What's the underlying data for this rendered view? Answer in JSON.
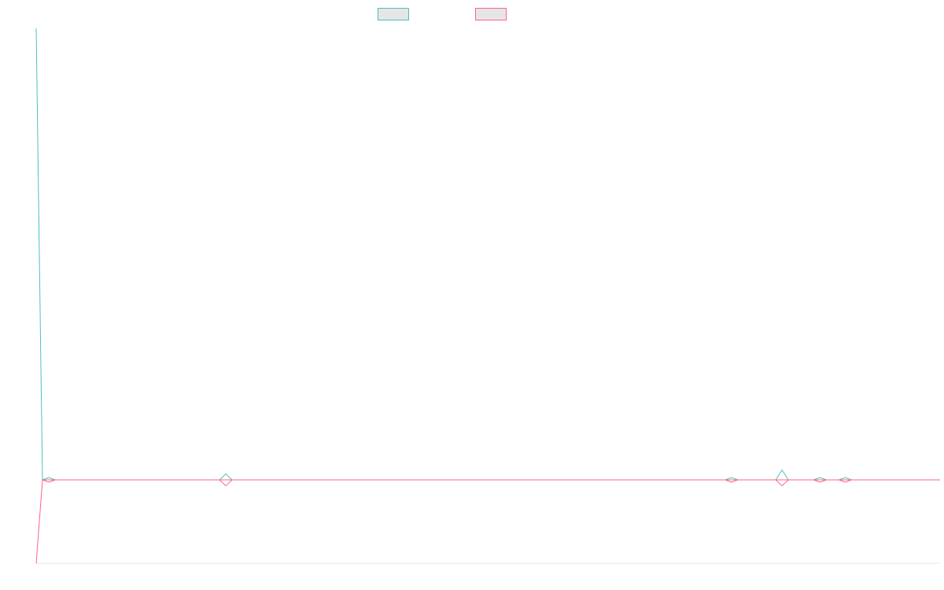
{
  "chart_data": {
    "type": "line",
    "title": "",
    "xlabel": "",
    "ylabel": "",
    "grid": false,
    "legend_position": "top",
    "series": [
      {
        "name": "",
        "color": "#4bc0c0",
        "values": [
          100,
          0,
          0,
          0,
          0,
          0,
          0,
          0,
          0,
          0,
          0,
          0,
          0,
          0,
          0,
          0,
          0,
          0,
          0,
          0,
          0,
          0,
          0,
          0,
          0,
          0,
          0,
          0,
          0,
          0,
          0,
          0,
          0,
          0,
          0,
          0,
          0,
          0,
          0,
          0,
          0,
          0,
          0,
          0,
          0,
          0,
          0,
          0,
          0,
          0,
          0,
          0,
          0,
          0,
          0,
          0,
          0,
          0,
          0,
          0,
          0,
          0,
          0,
          0,
          0,
          0,
          0,
          0,
          0,
          0,
          0,
          0,
          0,
          0,
          0,
          0,
          0,
          0,
          0,
          0,
          0,
          0,
          0,
          0,
          0,
          0,
          0,
          0,
          0,
          0,
          0,
          0,
          0,
          0,
          0,
          0,
          0,
          0,
          0,
          0,
          0,
          0,
          0,
          0,
          0,
          0,
          0,
          0,
          0,
          0,
          0,
          0,
          0,
          0,
          0,
          0,
          0,
          0,
          0,
          0,
          0,
          0,
          0,
          0,
          0,
          0,
          0,
          0,
          0,
          0,
          0,
          0,
          0,
          0,
          0,
          0,
          0,
          0,
          0,
          0,
          0,
          0,
          0,
          0
        ],
        "markers": [
          {
            "index": 2,
            "value": 0.05
          },
          {
            "index": 30,
            "value": 0.15
          },
          {
            "index": 110,
            "value": 0.05
          },
          {
            "index": 118,
            "value": 0.25
          },
          {
            "index": 124,
            "value": 0.05
          },
          {
            "index": 128,
            "value": 0.05
          }
        ]
      },
      {
        "name": "",
        "color": "#ff6384",
        "values": [
          -18.5,
          0,
          0,
          0,
          0,
          0,
          0,
          0,
          0,
          0,
          0,
          0,
          0,
          0,
          0,
          0,
          0,
          0,
          0,
          0,
          0,
          0,
          0,
          0,
          0,
          0,
          0,
          0,
          0,
          0,
          0,
          0,
          0,
          0,
          0,
          0,
          0,
          0,
          0,
          0,
          0,
          0,
          0,
          0,
          0,
          0,
          0,
          0,
          0,
          0,
          0,
          0,
          0,
          0,
          0,
          0,
          0,
          0,
          0,
          0,
          0,
          0,
          0,
          0,
          0,
          0,
          0,
          0,
          0,
          0,
          0,
          0,
          0,
          0,
          0,
          0,
          0,
          0,
          0,
          0,
          0,
          0,
          0,
          0,
          0,
          0,
          0,
          0,
          0,
          0,
          0,
          0,
          0,
          0,
          0,
          0,
          0,
          0,
          0,
          0,
          0,
          0,
          0,
          0,
          0,
          0,
          0,
          0,
          0,
          0,
          0,
          0,
          0,
          0,
          0,
          0,
          0,
          0,
          0,
          0,
          0,
          0,
          0,
          0,
          0,
          0,
          0,
          0,
          0,
          0,
          0,
          0,
          0,
          0,
          0,
          0,
          0,
          0,
          0,
          0,
          0,
          0,
          0,
          0
        ],
        "markers": [
          {
            "index": 2,
            "value": -0.05
          },
          {
            "index": 30,
            "value": -0.15
          },
          {
            "index": 110,
            "value": -0.05
          },
          {
            "index": 118,
            "value": -0.15
          },
          {
            "index": 124,
            "value": -0.05
          },
          {
            "index": 128,
            "value": -0.05
          }
        ]
      }
    ],
    "ylim": [
      -18.5,
      100
    ]
  }
}
